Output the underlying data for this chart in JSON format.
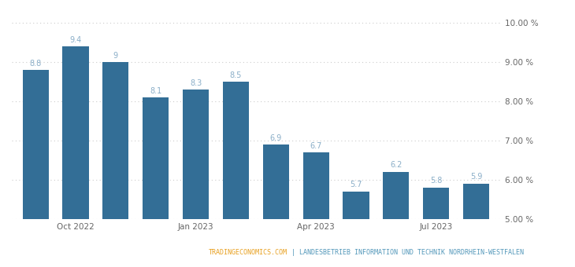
{
  "values": [
    8.8,
    9.4,
    9.0,
    8.1,
    8.3,
    8.5,
    6.9,
    6.7,
    5.7,
    6.2,
    5.8,
    5.9
  ],
  "bar_labels": [
    "8.8",
    "9.4",
    "9",
    "8.1",
    "8.3",
    "8.5",
    "6.9",
    "6.7",
    "5.7",
    "6.2",
    "5.8",
    "5.9"
  ],
  "x_tick_positions": [
    1,
    4,
    7,
    10
  ],
  "x_tick_labels": [
    "Oct 2022",
    "Jan 2023",
    "Apr 2023",
    "Jul 2023"
  ],
  "y_min": 5.0,
  "y_max": 10.0,
  "y_ticks": [
    5.0,
    6.0,
    7.0,
    8.0,
    9.0,
    10.0
  ],
  "y_tick_labels": [
    "5.00 %",
    "6.00 %",
    "7.00 %",
    "8.00 %",
    "9.00 %",
    "10.00 %"
  ],
  "bar_color": "#336e96",
  "bar_width": 0.65,
  "background_color": "#ffffff",
  "grid_color": "#cccccc",
  "label_color": "#8aaec8",
  "footer_text_1": "TRADINGECONOMICS.COM",
  "footer_sep": " | ",
  "footer_text_2": "LANDESBETRIEB INFORMATION UND TECHNIK NORDRHEIN-WESTFALEN",
  "footer_color_1": "#e8a020",
  "footer_color_2": "#5599bb",
  "label_fontsize": 7.0,
  "tick_fontsize": 7.5,
  "footer_fontsize": 6.0
}
